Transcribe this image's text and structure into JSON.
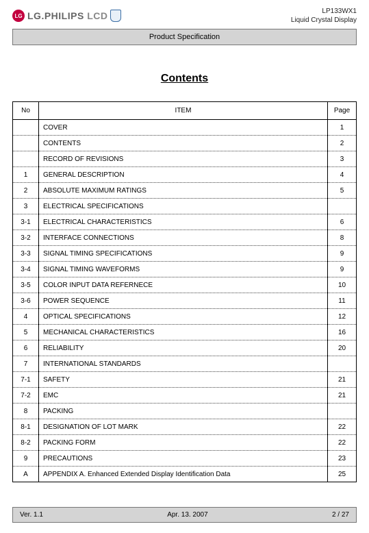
{
  "header": {
    "logo_text_a": "LG.PHILIPS",
    "logo_text_b": "LCD",
    "right_line1": "LP133WX1",
    "right_line2": "Liquid Crystal Display",
    "spec_bar": "Product Specification"
  },
  "title": "Contents",
  "table": {
    "columns": {
      "no": "No",
      "item": "ITEM",
      "page": "Page"
    },
    "rows": [
      {
        "no": "",
        "item": "COVER",
        "page": "1"
      },
      {
        "no": "",
        "item": "CONTENTS",
        "page": "2"
      },
      {
        "no": "",
        "item": "RECORD OF REVISIONS",
        "page": "3"
      },
      {
        "no": "1",
        "item": "GENERAL DESCRIPTION",
        "page": "4"
      },
      {
        "no": "2",
        "item": "ABSOLUTE MAXIMUM RATINGS",
        "page": "5"
      },
      {
        "no": "3",
        "item": "ELECTRICAL SPECIFICATIONS",
        "page": ""
      },
      {
        "no": "3-1",
        "item": "ELECTRICAL CHARACTERISTICS",
        "page": "6"
      },
      {
        "no": "3-2",
        "item": "INTERFACE CONNECTIONS",
        "page": "8"
      },
      {
        "no": "3-3",
        "item": "SIGNAL TIMING SPECIFICATIONS",
        "page": "9"
      },
      {
        "no": "3-4",
        "item": "SIGNAL TIMING WAVEFORMS",
        "page": "9"
      },
      {
        "no": "3-5",
        "item": "COLOR INPUT DATA REFERNECE",
        "page": "10"
      },
      {
        "no": "3-6",
        "item": "POWER SEQUENCE",
        "page": "11"
      },
      {
        "no": "4",
        "item": "OPTICAL SPECIFICATIONS",
        "page": "12"
      },
      {
        "no": "5",
        "item": "MECHANICAL CHARACTERISTICS",
        "page": "16"
      },
      {
        "no": "6",
        "item": "RELIABILITY",
        "page": "20"
      },
      {
        "no": "7",
        "item": "INTERNATIONAL STANDARDS",
        "page": ""
      },
      {
        "no": "7-1",
        "item": "SAFETY",
        "page": "21"
      },
      {
        "no": "7-2",
        "item": "EMC",
        "page": "21"
      },
      {
        "no": "8",
        "item": "PACKING",
        "page": ""
      },
      {
        "no": "8-1",
        "item": "DESIGNATION OF LOT MARK",
        "page": "22"
      },
      {
        "no": "8-2",
        "item": "PACKING FORM",
        "page": "22"
      },
      {
        "no": "9",
        "item": "PRECAUTIONS",
        "page": "23"
      },
      {
        "no": "A",
        "item": "APPENDIX A. Enhanced Extended Display Identification Data",
        "page": "25"
      }
    ]
  },
  "footer": {
    "version": "Ver. 1.1",
    "date": "Apr. 13. 2007",
    "page": "2 / 27"
  },
  "colors": {
    "bar_bg": "#d4d4d4",
    "bar_border": "#777777",
    "lg_red": "#c3003f",
    "text": "#000000"
  }
}
